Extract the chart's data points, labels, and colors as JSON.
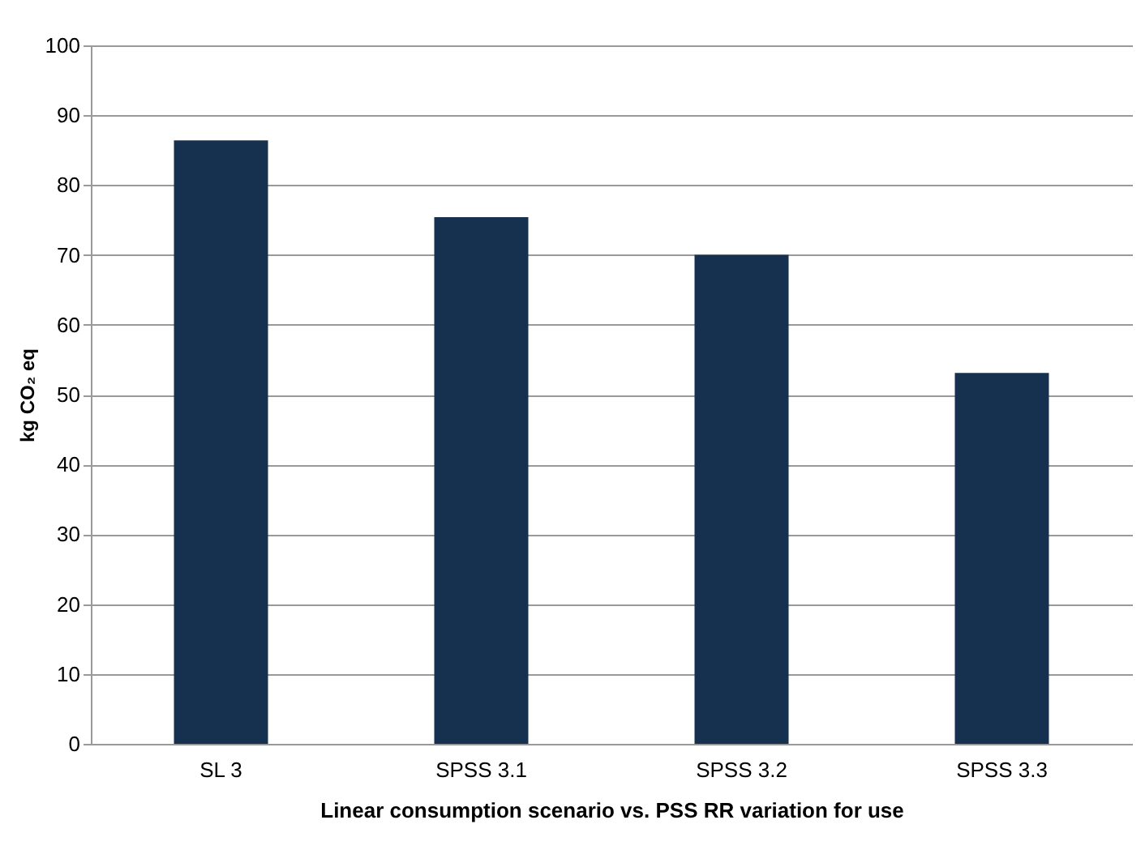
{
  "chart_data": {
    "type": "bar",
    "xlabel": "Linear consumption scenario vs. PSS RR variation for use",
    "ylabel": "kg CO₂ eq",
    "categories": [
      "SL 3",
      "SPSS 3.1",
      "SPSS 3.2",
      "SPSS 3.3"
    ],
    "values": [
      86.4,
      75.4,
      70,
      53.1
    ],
    "color": "#16304f",
    "ylim": [
      0,
      100
    ],
    "yticks": [
      0,
      10,
      20,
      30,
      40,
      50,
      60,
      70,
      80,
      90,
      100
    ],
    "grid": "y"
  }
}
